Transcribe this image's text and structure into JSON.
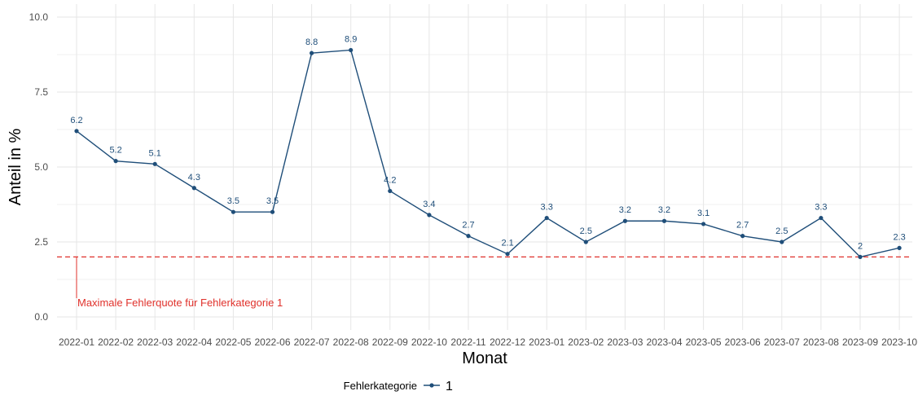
{
  "chart_data": {
    "type": "line",
    "xlabel": "Monat",
    "ylabel": "Anteil in %",
    "ylim": [
      0,
      10
    ],
    "yticks": [
      0.0,
      2.5,
      5.0,
      7.5,
      10.0
    ],
    "ytick_labels": [
      "0.0",
      "2.5",
      "5.0",
      "7.5",
      "10.0"
    ],
    "grid": true,
    "categories": [
      "2022-01",
      "2022-02",
      "2022-03",
      "2022-04",
      "2022-05",
      "2022-06",
      "2022-07",
      "2022-08",
      "2022-09",
      "2022-10",
      "2022-11",
      "2022-12",
      "2023-01",
      "2023-02",
      "2023-03",
      "2023-04",
      "2023-05",
      "2023-06",
      "2023-07",
      "2023-08",
      "2023-09",
      "2023-10"
    ],
    "series": [
      {
        "name": "1",
        "color": "#1f4e79",
        "values": [
          6.2,
          5.2,
          5.1,
          4.3,
          3.5,
          3.5,
          8.8,
          8.9,
          4.2,
          3.4,
          2.7,
          2.1,
          3.3,
          2.5,
          3.2,
          3.2,
          3.1,
          2.7,
          2.5,
          3.3,
          2.0,
          2.3
        ],
        "value_labels": [
          "6.2",
          "5.2",
          "5.1",
          "4.3",
          "3.5",
          "3.5",
          "8.8",
          "8.9",
          "4.2",
          "3.4",
          "2.7",
          "2.1",
          "3.3",
          "2.5",
          "3.2",
          "3.2",
          "3.1",
          "2.7",
          "2.5",
          "3.3",
          "2",
          "2.3"
        ]
      }
    ],
    "reference_line": {
      "y": 2.0,
      "color": "#e0312b",
      "style": "dashed",
      "label": "Maximale Fehlerquote für Fehlerkategorie 1"
    },
    "legend": {
      "title": "Fehlerkategorie",
      "placement": "bottom",
      "entries": [
        "1"
      ]
    }
  }
}
